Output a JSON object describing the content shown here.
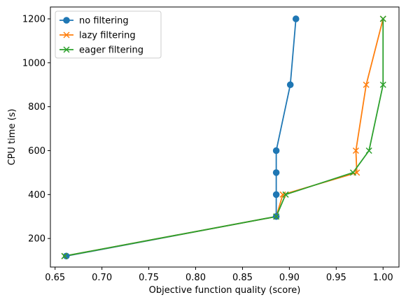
{
  "chart_data": {
    "type": "line",
    "title": "",
    "xlabel": "Objective function quality (score)",
    "ylabel": "CPU time (s)",
    "xlim": [
      0.645,
      1.017
    ],
    "ylim": [
      70,
      1254
    ],
    "xticks": [
      0.65,
      0.7,
      0.75,
      0.8,
      0.85,
      0.9,
      0.95,
      1.0
    ],
    "xtick_labels": [
      "0.65",
      "0.70",
      "0.75",
      "0.80",
      "0.85",
      "0.90",
      "0.95",
      "1.00"
    ],
    "yticks": [
      200,
      400,
      600,
      800,
      1000,
      1200
    ],
    "ytick_labels": [
      "200",
      "400",
      "600",
      "800",
      "1000",
      "1200"
    ],
    "grid": false,
    "legend_position": "top-left",
    "series": [
      {
        "name": "no filtering",
        "color": "#1f77b4",
        "marker": "circle",
        "x": [
          0.662,
          0.886,
          0.886,
          0.886,
          0.886,
          0.901,
          0.907
        ],
        "y": [
          120,
          300,
          400,
          500,
          600,
          900,
          1200
        ]
      },
      {
        "name": "lazy filtering",
        "color": "#ff7f0e",
        "marker": "x",
        "x": [
          0.66,
          0.886,
          0.893,
          0.972,
          0.971,
          0.982,
          1.0
        ],
        "y": [
          120,
          300,
          400,
          500,
          600,
          900,
          1200
        ]
      },
      {
        "name": "eager filtering",
        "color": "#2ca02c",
        "marker": "x",
        "x": [
          0.66,
          0.886,
          0.896,
          0.968,
          0.985,
          1.0,
          1.0
        ],
        "y": [
          120,
          300,
          400,
          500,
          600,
          900,
          1200
        ]
      }
    ]
  }
}
